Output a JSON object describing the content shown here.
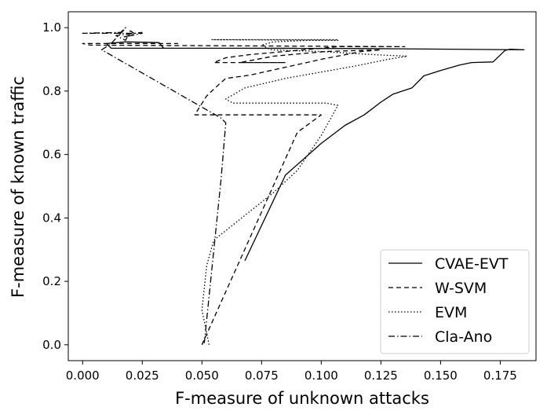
{
  "chart_data": {
    "type": "line",
    "title": "",
    "xlabel": "F-measure of unknown attacks",
    "ylabel": "F-measure of known traffic",
    "xlim": [
      -0.006,
      0.19
    ],
    "ylim": [
      -0.05,
      1.05
    ],
    "xticks": [
      "0.000",
      "0.025",
      "0.050",
      "0.075",
      "0.100",
      "0.125",
      "0.150",
      "0.175"
    ],
    "yticks": [
      "0.0",
      "0.2",
      "0.4",
      "0.6",
      "0.8",
      "1.0"
    ],
    "grid": false,
    "legend_position": "lower-right",
    "series": [
      {
        "name": "CVAE-EVT",
        "style": "solid",
        "points": [
          [
            0.068,
            0.265
          ],
          [
            0.085,
            0.535
          ],
          [
            0.1,
            0.635
          ],
          [
            0.11,
            0.692
          ],
          [
            0.118,
            0.725
          ],
          [
            0.125,
            0.765
          ],
          [
            0.13,
            0.79
          ],
          [
            0.138,
            0.81
          ],
          [
            0.143,
            0.848
          ],
          [
            0.15,
            0.865
          ],
          [
            0.158,
            0.882
          ],
          [
            0.163,
            0.89
          ],
          [
            0.172,
            0.892
          ],
          [
            0.177,
            0.928
          ],
          [
            0.179,
            0.932
          ],
          [
            0.185,
            0.93
          ],
          [
            0.12,
            0.934
          ],
          [
            0.05,
            0.935
          ],
          [
            0.012,
            0.935
          ],
          [
            0.01,
            0.95
          ],
          [
            0.018,
            0.955
          ],
          [
            0.032,
            0.953
          ],
          [
            0.034,
            0.935
          ],
          [
            0.09,
            0.935
          ]
        ]
      },
      {
        "name": "W-SVM",
        "style": "dashed",
        "points": [
          [
            0.05,
            0.0
          ],
          [
            0.09,
            0.67
          ],
          [
            0.1,
            0.725
          ],
          [
            0.047,
            0.725
          ],
          [
            0.052,
            0.785
          ],
          [
            0.057,
            0.82
          ],
          [
            0.06,
            0.84
          ],
          [
            0.07,
            0.85
          ],
          [
            0.085,
            0.875
          ],
          [
            0.1,
            0.9
          ],
          [
            0.117,
            0.925
          ],
          [
            0.125,
            0.93
          ],
          [
            0.102,
            0.925
          ],
          [
            0.08,
            0.91
          ],
          [
            0.066,
            0.89
          ],
          [
            0.085,
            0.89
          ],
          [
            0.055,
            0.89
          ],
          [
            0.06,
            0.905
          ],
          [
            0.07,
            0.915
          ],
          [
            0.085,
            0.925
          ],
          [
            0.1,
            0.935
          ],
          [
            0.107,
            0.94
          ],
          [
            0.135,
            0.94
          ],
          [
            0.003,
            0.945
          ],
          [
            0.0,
            0.95
          ],
          [
            0.04,
            0.95
          ]
        ]
      },
      {
        "name": "EVM",
        "style": "dotted",
        "points": [
          [
            0.053,
            0.0
          ],
          [
            0.05,
            0.11
          ],
          [
            0.052,
            0.25
          ],
          [
            0.055,
            0.33
          ],
          [
            0.07,
            0.42
          ],
          [
            0.08,
            0.48
          ],
          [
            0.09,
            0.55
          ],
          [
            0.1,
            0.66
          ],
          [
            0.107,
            0.755
          ],
          [
            0.102,
            0.762
          ],
          [
            0.063,
            0.762
          ],
          [
            0.06,
            0.775
          ],
          [
            0.068,
            0.81
          ],
          [
            0.085,
            0.84
          ],
          [
            0.1,
            0.86
          ],
          [
            0.115,
            0.88
          ],
          [
            0.128,
            0.9
          ],
          [
            0.136,
            0.91
          ],
          [
            0.127,
            0.913
          ],
          [
            0.115,
            0.918
          ],
          [
            0.1,
            0.925
          ],
          [
            0.085,
            0.928
          ],
          [
            0.079,
            0.93
          ],
          [
            0.075,
            0.945
          ],
          [
            0.08,
            0.955
          ],
          [
            0.095,
            0.96
          ],
          [
            0.107,
            0.96
          ],
          [
            0.054,
            0.962
          ],
          [
            0.075,
            0.962
          ],
          [
            0.107,
            0.962
          ]
        ]
      },
      {
        "name": "Cla-Ano",
        "style": "dashdot",
        "points": [
          [
            0.051,
            0.005
          ],
          [
            0.055,
            0.3
          ],
          [
            0.058,
            0.52
          ],
          [
            0.06,
            0.7
          ],
          [
            0.058,
            0.715
          ],
          [
            0.008,
            0.93
          ],
          [
            0.012,
            0.95
          ],
          [
            0.015,
            0.975
          ],
          [
            0.017,
            0.99
          ],
          [
            0.018,
            1.0
          ],
          [
            0.016,
            0.985
          ],
          [
            0.0,
            0.982
          ],
          [
            0.025,
            0.982
          ],
          [
            0.017,
            0.97
          ],
          [
            0.022,
            0.98
          ],
          [
            0.02,
            0.99
          ],
          [
            0.018,
            0.96
          ],
          [
            0.014,
            0.975
          ],
          [
            0.025,
            0.985
          ]
        ]
      }
    ]
  }
}
